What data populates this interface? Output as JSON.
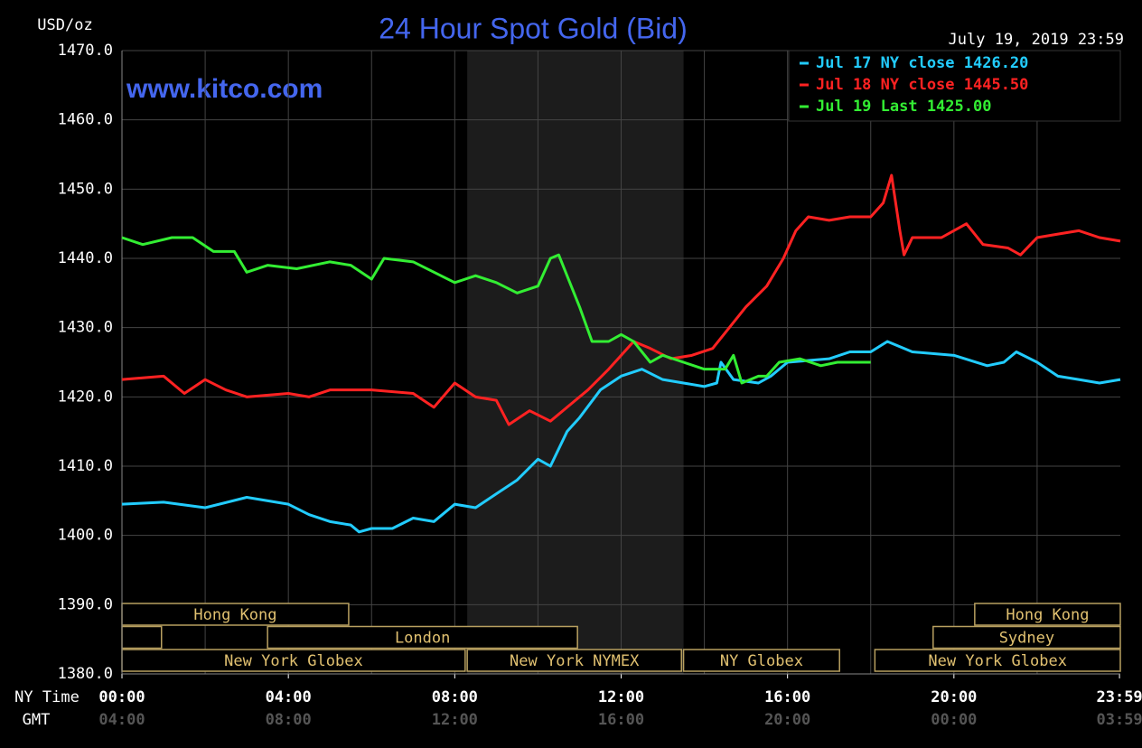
{
  "chart_data": {
    "type": "line",
    "title": "24 Hour Spot Gold (Bid)",
    "y_label": "USD/oz",
    "watermark": "www.kitco.com",
    "timestamp": "July 19, 2019 23:59",
    "x_row_label": "NY Time",
    "x2_row_label": "GMT",
    "xlim": [
      0,
      24
    ],
    "xticks": [
      {
        "value": 0,
        "label": "00:00"
      },
      {
        "value": 4,
        "label": "04:00"
      },
      {
        "value": 8,
        "label": "08:00"
      },
      {
        "value": 12,
        "label": "12:00"
      },
      {
        "value": 16,
        "label": "16:00"
      },
      {
        "value": 20,
        "label": "20:00"
      },
      {
        "value": 23.98,
        "label": "23:59"
      }
    ],
    "x2ticks": [
      {
        "value": 0,
        "label": "04:00"
      },
      {
        "value": 4,
        "label": "08:00"
      },
      {
        "value": 8,
        "label": "12:00"
      },
      {
        "value": 12,
        "label": "16:00"
      },
      {
        "value": 16,
        "label": "20:00"
      },
      {
        "value": 20,
        "label": "00:00"
      },
      {
        "value": 23.98,
        "label": "03:59"
      }
    ],
    "x_grid": [
      2,
      4,
      6,
      8,
      10,
      12,
      14,
      16,
      18,
      20,
      22
    ],
    "ylim": [
      1380,
      1470
    ],
    "yticks": [
      {
        "value": 1380,
        "label": "1380.0"
      },
      {
        "value": 1390,
        "label": "1390.0"
      },
      {
        "value": 1400,
        "label": "1400.0"
      },
      {
        "value": 1410,
        "label": "1410.0"
      },
      {
        "value": 1420,
        "label": "1420.0"
      },
      {
        "value": 1430,
        "label": "1430.0"
      },
      {
        "value": 1440,
        "label": "1440.0"
      },
      {
        "value": 1450,
        "label": "1450.0"
      },
      {
        "value": 1460,
        "label": "1460.0"
      },
      {
        "value": 1470,
        "label": "1470.0"
      }
    ],
    "grid": true,
    "legend": "top-right",
    "highlight": [
      8.3,
      13.5
    ],
    "sessions": [
      [
        {
          "label": "Hong Kong",
          "start": 0,
          "end": 5.45
        },
        {
          "label": "Hong Kong",
          "start": 20.5,
          "end": 24
        }
      ],
      [
        {
          "label": null,
          "start": 0,
          "end": 0.95
        },
        {
          "label": "London",
          "start": 3.5,
          "end": 10.95
        },
        {
          "label": "Sydney",
          "start": 19.5,
          "end": 24
        }
      ],
      [
        {
          "label": "New York Globex",
          "start": 0,
          "end": 8.25
        },
        {
          "label": "New York NYMEX",
          "start": 8.3,
          "end": 13.45
        },
        {
          "label": "NY Globex",
          "start": 13.5,
          "end": 17.25
        },
        {
          "label": "New York Globex",
          "start": 18.1,
          "end": 24
        }
      ]
    ],
    "series": [
      {
        "name": "Jul 17 NY close 1426.20",
        "color": "#22ccff",
        "x": [
          0,
          1,
          2,
          3,
          4,
          4.5,
          5,
          5.5,
          5.7,
          6,
          6.5,
          7,
          7.5,
          8,
          8.5,
          9,
          9.5,
          10,
          10.3,
          10.7,
          11,
          11.5,
          12,
          12.5,
          13,
          13.5,
          14,
          14.3,
          14.4,
          14.7,
          15.3,
          15.6,
          16,
          17,
          17.5,
          18,
          18.4,
          19,
          20,
          20.8,
          21.2,
          21.5,
          22,
          22.5,
          23,
          23.5,
          24
        ],
        "values": [
          1404.5,
          1404.8,
          1404,
          1405.5,
          1404.5,
          1403,
          1402,
          1401.5,
          1400.5,
          1401,
          1401,
          1402.5,
          1402,
          1404.5,
          1404,
          1406,
          1408,
          1411,
          1410,
          1415,
          1417,
          1421,
          1423,
          1424,
          1422.5,
          1422,
          1421.5,
          1422,
          1425,
          1422.5,
          1422,
          1423,
          1425,
          1425.5,
          1426.5,
          1426.5,
          1428,
          1426.5,
          1426,
          1424.5,
          1425,
          1426.5,
          1425,
          1423,
          1422.5,
          1422,
          1422.5
        ]
      },
      {
        "name": "Jul 18 NY close 1445.50",
        "color": "#ff2222",
        "x": [
          0,
          1,
          1.5,
          2,
          2.5,
          3,
          4,
          4.5,
          5,
          6,
          7,
          7.5,
          8,
          8.5,
          9,
          9.3,
          9.8,
          10.3,
          10.8,
          11.2,
          11.7,
          12,
          12.3,
          12.7,
          13.2,
          13.7,
          14.2,
          14.6,
          15,
          15.5,
          15.9,
          16.2,
          16.5,
          17,
          17.5,
          18,
          18.3,
          18.5,
          18.7,
          18.8,
          19,
          19.7,
          20.3,
          20.7,
          21.3,
          21.6,
          22,
          22.5,
          23,
          23.5,
          24
        ],
        "values": [
          1422.5,
          1423,
          1420.5,
          1422.5,
          1421,
          1420,
          1420.5,
          1420,
          1421,
          1421,
          1420.5,
          1418.5,
          1422,
          1420,
          1419.5,
          1416,
          1418,
          1416.5,
          1419,
          1421,
          1424,
          1426,
          1428,
          1427,
          1425.5,
          1426,
          1427,
          1430,
          1433,
          1436,
          1440,
          1444,
          1446,
          1445.5,
          1446,
          1446,
          1448,
          1452,
          1444,
          1440.5,
          1443,
          1443,
          1445,
          1442,
          1441.5,
          1440.5,
          1443,
          1443.5,
          1444,
          1443,
          1442.5
        ]
      },
      {
        "name": "Jul 19 Last 1425.00",
        "color": "#33ee33",
        "x": [
          0,
          0.5,
          1.2,
          1.7,
          2.2,
          2.7,
          3,
          3.5,
          4.2,
          5,
          5.5,
          6,
          6.3,
          7,
          7.5,
          8,
          8.5,
          9,
          9.5,
          10,
          10.3,
          10.5,
          10.8,
          11,
          11.3,
          11.7,
          12,
          12.3,
          12.7,
          13,
          13.5,
          14,
          14.5,
          14.7,
          14.9,
          15.3,
          15.5,
          15.8,
          16.3,
          16.8,
          17.2,
          18
        ],
        "values": [
          1443,
          1442,
          1443,
          1443,
          1441,
          1441,
          1438,
          1439,
          1438.5,
          1439.5,
          1439,
          1437,
          1440,
          1439.5,
          1438,
          1436.5,
          1437.5,
          1436.5,
          1435,
          1436,
          1440,
          1440.5,
          1436,
          1433,
          1428,
          1428,
          1429,
          1428,
          1425,
          1426,
          1425,
          1424,
          1424,
          1426,
          1422,
          1423,
          1423,
          1425,
          1425.5,
          1424.5,
          1425,
          1425
        ]
      }
    ]
  }
}
